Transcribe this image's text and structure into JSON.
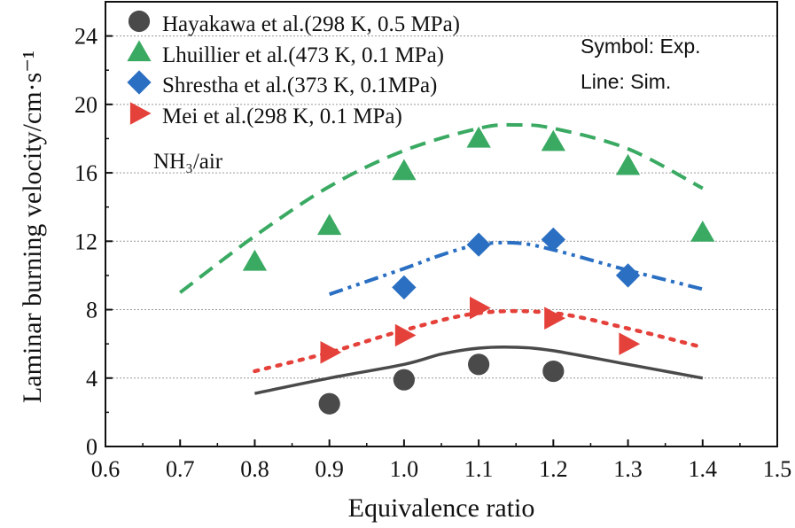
{
  "chart_data": {
    "type": "scatter",
    "xlabel": "Equivalence ratio",
    "ylabel": "Laminar burning velocity/cm·s⁻¹",
    "xlim": [
      0.6,
      1.5
    ],
    "ylim": [
      0,
      26
    ],
    "x_ticks": [
      "0.6",
      "0.7",
      "0.8",
      "0.9",
      "1.0",
      "1.1",
      "1.2",
      "1.3",
      "1.4",
      "1.5"
    ],
    "y_ticks": [
      "0",
      "4",
      "8",
      "12",
      "16",
      "20",
      "24"
    ],
    "grid": "horizontal dotted",
    "legend_position": "top-left",
    "annotation": "NH₃/air",
    "notes": [
      "Symbol: Exp.",
      "Line: Sim."
    ],
    "series": [
      {
        "name": "Hayakawa et al.(298 K, 0.5 MPa)",
        "color": "#4a4a4a",
        "marker": "circle",
        "line_style": "solid",
        "points": [
          [
            0.9,
            2.5
          ],
          [
            1.0,
            3.9
          ],
          [
            1.1,
            4.8
          ],
          [
            1.2,
            4.4
          ]
        ],
        "sim": [
          [
            0.8,
            3.1
          ],
          [
            0.9,
            4.0
          ],
          [
            1.0,
            4.8
          ],
          [
            1.05,
            5.4
          ],
          [
            1.1,
            5.75
          ],
          [
            1.15,
            5.8
          ],
          [
            1.2,
            5.6
          ],
          [
            1.3,
            4.8
          ],
          [
            1.4,
            4.0
          ]
        ]
      },
      {
        "name": "Lhuillier et al.(473 K, 0.1 MPa)",
        "color": "#3aaa63",
        "marker": "triangle",
        "line_style": "dashed",
        "points": [
          [
            0.8,
            10.8
          ],
          [
            0.9,
            12.9
          ],
          [
            1.0,
            16.1
          ],
          [
            1.1,
            18.0
          ],
          [
            1.2,
            17.8
          ],
          [
            1.3,
            16.4
          ],
          [
            1.4,
            12.5
          ]
        ],
        "sim": [
          [
            0.7,
            9.0
          ],
          [
            0.8,
            12.3
          ],
          [
            0.9,
            15.2
          ],
          [
            1.0,
            17.3
          ],
          [
            1.1,
            18.6
          ],
          [
            1.15,
            18.8
          ],
          [
            1.2,
            18.6
          ],
          [
            1.3,
            17.4
          ],
          [
            1.4,
            15.1
          ]
        ]
      },
      {
        "name": "Shrestha et al.(373 K, 0.1MPa)",
        "color": "#2a6fc2",
        "marker": "diamond",
        "line_style": "dashdotdot",
        "points": [
          [
            1.0,
            9.3
          ],
          [
            1.1,
            11.8
          ],
          [
            1.2,
            12.1
          ],
          [
            1.3,
            10.0
          ]
        ],
        "sim": [
          [
            0.9,
            8.9
          ],
          [
            1.0,
            10.4
          ],
          [
            1.05,
            11.2
          ],
          [
            1.1,
            11.8
          ],
          [
            1.15,
            11.9
          ],
          [
            1.2,
            11.5
          ],
          [
            1.3,
            10.3
          ],
          [
            1.4,
            9.2
          ]
        ]
      },
      {
        "name": "Mei et al.(298 K, 0.1 MPa)",
        "color": "#e5413b",
        "marker": "triangle-right",
        "line_style": "dotted",
        "points": [
          [
            0.9,
            5.5
          ],
          [
            1.0,
            6.5
          ],
          [
            1.1,
            8.1
          ],
          [
            1.2,
            7.5
          ],
          [
            1.3,
            6.0
          ]
        ],
        "sim": [
          [
            0.8,
            4.4
          ],
          [
            0.9,
            5.5
          ],
          [
            1.0,
            6.8
          ],
          [
            1.1,
            7.8
          ],
          [
            1.2,
            7.8
          ],
          [
            1.3,
            6.9
          ],
          [
            1.4,
            5.8
          ]
        ]
      }
    ]
  }
}
